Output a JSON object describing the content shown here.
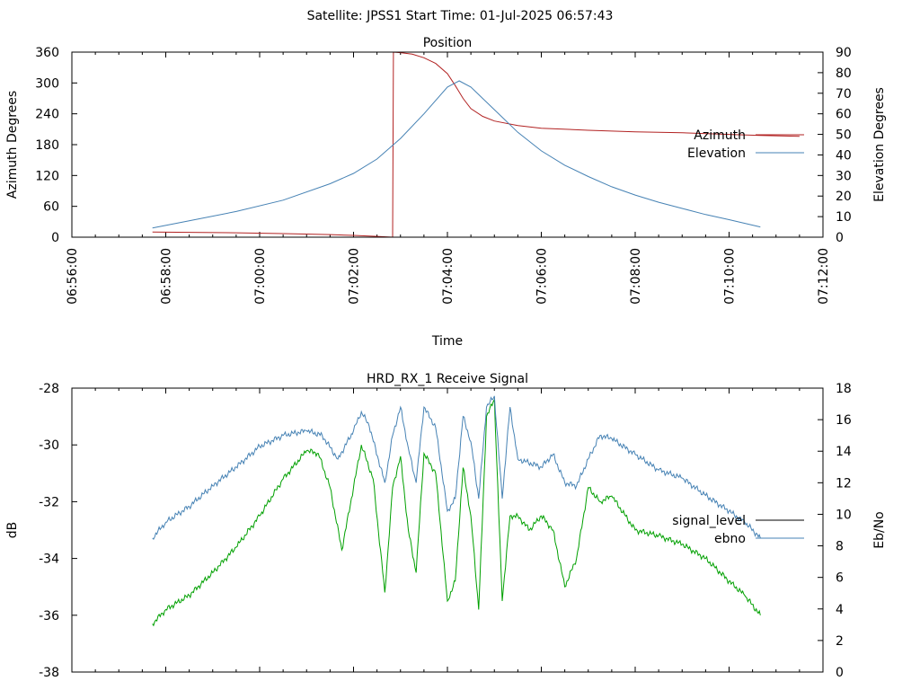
{
  "page_title": "Satellite: JPSS1    Start Time: 01-Jul-2025 06:57:43",
  "chart_data": [
    {
      "type": "line",
      "title": "Position",
      "xlabel": "Time",
      "ylabel": "Azimuth Degrees",
      "y2label": "Elevation Degrees",
      "x_ticks": [
        "06:56:00",
        "06:58:00",
        "07:00:00",
        "07:02:00",
        "07:04:00",
        "07:06:00",
        "07:08:00",
        "07:10:00",
        "07:12:00"
      ],
      "xlim": [
        "06:56:00",
        "07:12:00"
      ],
      "ylim": [
        0,
        360
      ],
      "y_ticks": [
        0,
        60,
        120,
        180,
        240,
        300,
        360
      ],
      "y2lim": [
        0,
        90
      ],
      "y2_ticks": [
        0,
        10,
        20,
        30,
        40,
        50,
        60,
        70,
        80,
        90
      ],
      "legend_position": "right",
      "series": [
        {
          "name": "Azimuth",
          "axis": "y",
          "color": "#b22222",
          "points": [
            [
              "06:57:43",
              10
            ],
            [
              "06:58:30",
              9.5
            ],
            [
              "06:59:30",
              8.5
            ],
            [
              "07:00:30",
              7
            ],
            [
              "07:01:30",
              5
            ],
            [
              "07:02:00",
              3.5
            ],
            [
              "07:02:30",
              1.5
            ],
            [
              "07:02:50",
              0
            ],
            [
              "07:02:51",
              360
            ],
            [
              "07:03:00",
              359
            ],
            [
              "07:03:15",
              356
            ],
            [
              "07:03:30",
              349
            ],
            [
              "07:03:45",
              338
            ],
            [
              "07:04:00",
              318
            ],
            [
              "07:04:10",
              295
            ],
            [
              "07:04:20",
              270
            ],
            [
              "07:04:30",
              250
            ],
            [
              "07:04:45",
              235
            ],
            [
              "07:05:00",
              226
            ],
            [
              "07:05:30",
              217
            ],
            [
              "07:06:00",
              212
            ],
            [
              "07:07:00",
              208
            ],
            [
              "07:08:00",
              205
            ],
            [
              "07:09:00",
              203
            ],
            [
              "07:10:00",
              200
            ],
            [
              "07:10:40",
              198
            ],
            [
              "07:11:30",
              196
            ]
          ]
        },
        {
          "name": "Elevation",
          "axis": "y2",
          "color": "#4682b4",
          "points": [
            [
              "06:57:43",
              4.5
            ],
            [
              "06:58:30",
              8
            ],
            [
              "06:59:30",
              12.5
            ],
            [
              "07:00:30",
              18
            ],
            [
              "07:01:30",
              26
            ],
            [
              "07:02:00",
              31
            ],
            [
              "07:02:30",
              38
            ],
            [
              "07:03:00",
              48
            ],
            [
              "07:03:30",
              60
            ],
            [
              "07:04:00",
              73
            ],
            [
              "07:04:15",
              76
            ],
            [
              "07:04:30",
              73
            ],
            [
              "07:05:00",
              62
            ],
            [
              "07:05:30",
              51
            ],
            [
              "07:06:00",
              42
            ],
            [
              "07:06:30",
              35
            ],
            [
              "07:07:00",
              29.5
            ],
            [
              "07:07:30",
              24.5
            ],
            [
              "07:08:00",
              20.5
            ],
            [
              "07:08:30",
              17
            ],
            [
              "07:09:00",
              14
            ],
            [
              "07:09:30",
              11
            ],
            [
              "07:10:00",
              8.5
            ],
            [
              "07:10:40",
              5
            ]
          ]
        }
      ]
    },
    {
      "type": "line",
      "title": "HRD_RX_1 Receive Signal",
      "xlabel": "",
      "ylabel": "dB",
      "y2label": "Eb/No",
      "xlim": [
        "06:56:00",
        "07:12:00"
      ],
      "ylim": [
        -38,
        -28
      ],
      "y_ticks": [
        -38,
        -36,
        -34,
        -32,
        -30,
        -28
      ],
      "y2lim": [
        0,
        18
      ],
      "y2_ticks": [
        0,
        2,
        4,
        6,
        8,
        10,
        12,
        14,
        16,
        18
      ],
      "legend_position": "right",
      "series": [
        {
          "name": "signal_level",
          "axis": "y",
          "color": "#00a000",
          "points": [
            [
              "06:57:43",
              -36.3
            ],
            [
              "06:58:00",
              -35.8
            ],
            [
              "06:58:30",
              -35.3
            ],
            [
              "06:59:00",
              -34.5
            ],
            [
              "06:59:30",
              -33.6
            ],
            [
              "07:00:00",
              -32.5
            ],
            [
              "07:00:30",
              -31.2
            ],
            [
              "07:01:00",
              -30.2
            ],
            [
              "07:01:15",
              -30.3
            ],
            [
              "07:01:30",
              -31.5
            ],
            [
              "07:01:45",
              -33.7
            ],
            [
              "07:02:00",
              -31.5
            ],
            [
              "07:02:10",
              -30.0
            ],
            [
              "07:02:25",
              -31.2
            ],
            [
              "07:02:40",
              -35.2
            ],
            [
              "07:02:50",
              -31.5
            ],
            [
              "07:03:00",
              -30.4
            ],
            [
              "07:03:10",
              -33.0
            ],
            [
              "07:03:20",
              -34.5
            ],
            [
              "07:03:30",
              -30.3
            ],
            [
              "07:03:45",
              -31.0
            ],
            [
              "07:04:00",
              -35.5
            ],
            [
              "07:04:10",
              -34.8
            ],
            [
              "07:04:20",
              -30.8
            ],
            [
              "07:04:30",
              -32.5
            ],
            [
              "07:04:40",
              -35.8
            ],
            [
              "07:04:50",
              -29.0
            ],
            [
              "07:05:00",
              -28.4
            ],
            [
              "07:05:10",
              -35.5
            ],
            [
              "07:05:20",
              -32.5
            ],
            [
              "07:05:30",
              -32.5
            ],
            [
              "07:05:45",
              -33.0
            ],
            [
              "07:06:00",
              -32.5
            ],
            [
              "07:06:15",
              -33.0
            ],
            [
              "07:06:30",
              -35.0
            ],
            [
              "07:06:45",
              -34.0
            ],
            [
              "07:07:00",
              -31.5
            ],
            [
              "07:07:15",
              -32.0
            ],
            [
              "07:07:30",
              -31.8
            ],
            [
              "07:08:00",
              -33.0
            ],
            [
              "07:08:30",
              -33.2
            ],
            [
              "07:09:00",
              -33.5
            ],
            [
              "07:09:30",
              -34.0
            ],
            [
              "07:10:00",
              -34.8
            ],
            [
              "07:10:20",
              -35.3
            ],
            [
              "07:10:40",
              -36.0
            ]
          ]
        },
        {
          "name": "ebno",
          "axis": "y2",
          "color": "#4682b4",
          "points": [
            [
              "06:57:43",
              8.5
            ],
            [
              "06:58:00",
              9.5
            ],
            [
              "06:58:30",
              10.5
            ],
            [
              "06:59:00",
              11.8
            ],
            [
              "06:59:30",
              13.0
            ],
            [
              "07:00:00",
              14.3
            ],
            [
              "07:00:30",
              15.0
            ],
            [
              "07:01:00",
              15.3
            ],
            [
              "07:01:20",
              15.0
            ],
            [
              "07:01:40",
              13.5
            ],
            [
              "07:02:00",
              15.3
            ],
            [
              "07:02:10",
              16.5
            ],
            [
              "07:02:20",
              15.6
            ],
            [
              "07:02:40",
              12.0
            ],
            [
              "07:02:50",
              15.0
            ],
            [
              "07:03:00",
              16.8
            ],
            [
              "07:03:10",
              14.2
            ],
            [
              "07:03:20",
              12.0
            ],
            [
              "07:03:30",
              16.8
            ],
            [
              "07:03:45",
              15.5
            ],
            [
              "07:04:00",
              10.2
            ],
            [
              "07:04:10",
              11.0
            ],
            [
              "07:04:20",
              16.2
            ],
            [
              "07:04:30",
              14.6
            ],
            [
              "07:04:40",
              11.0
            ],
            [
              "07:04:50",
              16.8
            ],
            [
              "07:05:00",
              17.5
            ],
            [
              "07:05:10",
              11.0
            ],
            [
              "07:05:20",
              16.8
            ],
            [
              "07:05:30",
              13.5
            ],
            [
              "07:06:00",
              13.0
            ],
            [
              "07:06:15",
              13.8
            ],
            [
              "07:06:30",
              12.0
            ],
            [
              "07:06:45",
              11.8
            ],
            [
              "07:07:00",
              13.5
            ],
            [
              "07:07:15",
              15.0
            ],
            [
              "07:07:30",
              14.8
            ],
            [
              "07:08:00",
              13.8
            ],
            [
              "07:08:30",
              12.8
            ],
            [
              "07:09:00",
              12.3
            ],
            [
              "07:09:30",
              11.2
            ],
            [
              "07:10:00",
              10.2
            ],
            [
              "07:10:20",
              9.5
            ],
            [
              "07:10:40",
              8.5
            ]
          ]
        }
      ]
    }
  ]
}
